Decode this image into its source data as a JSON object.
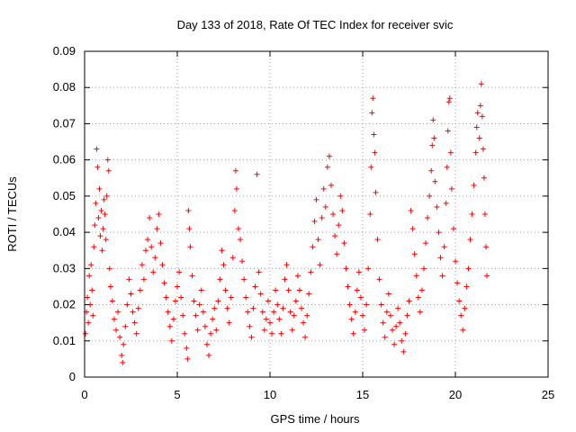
{
  "chart_data": {
    "type": "scatter",
    "title": "Day 133 of 2018, Rate Of TEC Index for receiver svic",
    "xlabel": "GPS time / hours",
    "ylabel": "ROTI / TECUs",
    "xlim": [
      0,
      25
    ],
    "ylim": [
      0,
      0.09
    ],
    "x_ticks": [
      "0",
      "5",
      "10",
      "15",
      "20",
      "25"
    ],
    "y_ticks": [
      "0",
      "0.01",
      "0.02",
      "0.03",
      "0.04",
      "0.05",
      "0.06",
      "0.07",
      "0.08",
      "0.09"
    ],
    "grid": true,
    "marker": "+",
    "color": "#ff0000",
    "points": [
      [
        0.05,
        0.012
      ],
      [
        0.1,
        0.018
      ],
      [
        0.15,
        0.022
      ],
      [
        0.2,
        0.015
      ],
      [
        0.25,
        0.028
      ],
      [
        0.3,
        0.02
      ],
      [
        0.35,
        0.031
      ],
      [
        0.4,
        0.024
      ],
      [
        0.45,
        0.017
      ],
      [
        0.5,
        0.036
      ],
      [
        0.55,
        0.042
      ],
      [
        0.6,
        0.048
      ],
      [
        0.65,
        0.063
      ],
      [
        0.7,
        0.058
      ],
      [
        0.75,
        0.044
      ],
      [
        0.8,
        0.052
      ],
      [
        0.85,
        0.039
      ],
      [
        0.9,
        0.046
      ],
      [
        0.95,
        0.035
      ],
      [
        1.0,
        0.041
      ],
      [
        1.05,
        0.049
      ],
      [
        1.1,
        0.045
      ],
      [
        1.15,
        0.038
      ],
      [
        1.2,
        0.05
      ],
      [
        1.25,
        0.06
      ],
      [
        1.3,
        0.057
      ],
      [
        1.35,
        0.03
      ],
      [
        1.4,
        0.025
      ],
      [
        1.5,
        0.021
      ],
      [
        1.6,
        0.016
      ],
      [
        1.7,
        0.013
      ],
      [
        1.8,
        0.018
      ],
      [
        1.9,
        0.011
      ],
      [
        2.0,
        0.006
      ],
      [
        2.05,
        0.004
      ],
      [
        2.1,
        0.009
      ],
      [
        2.2,
        0.014
      ],
      [
        2.3,
        0.02
      ],
      [
        2.4,
        0.027
      ],
      [
        2.5,
        0.023
      ],
      [
        2.6,
        0.018
      ],
      [
        2.7,
        0.015
      ],
      [
        2.8,
        0.012
      ],
      [
        2.9,
        0.019
      ],
      [
        3.0,
        0.024
      ],
      [
        3.1,
        0.031
      ],
      [
        3.2,
        0.027
      ],
      [
        3.3,
        0.035
      ],
      [
        3.4,
        0.038
      ],
      [
        3.5,
        0.044
      ],
      [
        3.6,
        0.036
      ],
      [
        3.7,
        0.029
      ],
      [
        3.8,
        0.033
      ],
      [
        3.9,
        0.041
      ],
      [
        4.0,
        0.045
      ],
      [
        4.1,
        0.037
      ],
      [
        4.2,
        0.031
      ],
      [
        4.3,
        0.026
      ],
      [
        4.4,
        0.022
      ],
      [
        4.5,
        0.018
      ],
      [
        4.6,
        0.014
      ],
      [
        4.7,
        0.01
      ],
      [
        4.8,
        0.016
      ],
      [
        4.9,
        0.021
      ],
      [
        5.0,
        0.025
      ],
      [
        5.1,
        0.029
      ],
      [
        5.2,
        0.022
      ],
      [
        5.3,
        0.017
      ],
      [
        5.4,
        0.012
      ],
      [
        5.5,
        0.008
      ],
      [
        5.55,
        0.005
      ],
      [
        5.6,
        0.046
      ],
      [
        5.65,
        0.041
      ],
      [
        5.7,
        0.036
      ],
      [
        5.8,
        0.028
      ],
      [
        5.9,
        0.021
      ],
      [
        6.0,
        0.017
      ],
      [
        6.1,
        0.013
      ],
      [
        6.2,
        0.02
      ],
      [
        6.3,
        0.024
      ],
      [
        6.4,
        0.018
      ],
      [
        6.5,
        0.014
      ],
      [
        6.6,
        0.009
      ],
      [
        6.7,
        0.006
      ],
      [
        6.8,
        0.012
      ],
      [
        6.9,
        0.016
      ],
      [
        7.0,
        0.019
      ],
      [
        7.1,
        0.013
      ],
      [
        7.2,
        0.021
      ],
      [
        7.3,
        0.027
      ],
      [
        7.4,
        0.035
      ],
      [
        7.5,
        0.031
      ],
      [
        7.6,
        0.024
      ],
      [
        7.7,
        0.019
      ],
      [
        7.8,
        0.015
      ],
      [
        7.9,
        0.022
      ],
      [
        8.0,
        0.033
      ],
      [
        8.1,
        0.046
      ],
      [
        8.15,
        0.057
      ],
      [
        8.2,
        0.052
      ],
      [
        8.3,
        0.041
      ],
      [
        8.4,
        0.038
      ],
      [
        8.5,
        0.032
      ],
      [
        8.6,
        0.027
      ],
      [
        8.7,
        0.022
      ],
      [
        8.8,
        0.018
      ],
      [
        8.9,
        0.014
      ],
      [
        9.0,
        0.011
      ],
      [
        9.1,
        0.019
      ],
      [
        9.2,
        0.025
      ],
      [
        9.3,
        0.056
      ],
      [
        9.4,
        0.029
      ],
      [
        9.5,
        0.023
      ],
      [
        9.6,
        0.018
      ],
      [
        9.7,
        0.013
      ],
      [
        9.8,
        0.016
      ],
      [
        9.9,
        0.021
      ],
      [
        10.0,
        0.015
      ],
      [
        10.1,
        0.012
      ],
      [
        10.2,
        0.018
      ],
      [
        10.3,
        0.024
      ],
      [
        10.4,
        0.02
      ],
      [
        10.5,
        0.016
      ],
      [
        10.6,
        0.012
      ],
      [
        10.7,
        0.019
      ],
      [
        10.8,
        0.027
      ],
      [
        10.9,
        0.031
      ],
      [
        11.0,
        0.024
      ],
      [
        11.1,
        0.018
      ],
      [
        11.2,
        0.013
      ],
      [
        11.3,
        0.017
      ],
      [
        11.4,
        0.021
      ],
      [
        11.5,
        0.028
      ],
      [
        11.6,
        0.024
      ],
      [
        11.7,
        0.019
      ],
      [
        11.8,
        0.015
      ],
      [
        11.9,
        0.011
      ],
      [
        12.0,
        0.017
      ],
      [
        12.1,
        0.023
      ],
      [
        12.2,
        0.029
      ],
      [
        12.3,
        0.036
      ],
      [
        12.4,
        0.043
      ],
      [
        12.5,
        0.049
      ],
      [
        12.6,
        0.038
      ],
      [
        12.7,
        0.031
      ],
      [
        12.8,
        0.044
      ],
      [
        12.9,
        0.052
      ],
      [
        13.0,
        0.047
      ],
      [
        13.1,
        0.058
      ],
      [
        13.2,
        0.061
      ],
      [
        13.3,
        0.053
      ],
      [
        13.4,
        0.045
      ],
      [
        13.5,
        0.039
      ],
      [
        13.6,
        0.034
      ],
      [
        13.7,
        0.042
      ],
      [
        13.8,
        0.05
      ],
      [
        13.9,
        0.046
      ],
      [
        14.0,
        0.037
      ],
      [
        14.1,
        0.03
      ],
      [
        14.2,
        0.025
      ],
      [
        14.3,
        0.02
      ],
      [
        14.4,
        0.016
      ],
      [
        14.5,
        0.012
      ],
      [
        14.6,
        0.018
      ],
      [
        14.7,
        0.024
      ],
      [
        14.8,
        0.029
      ],
      [
        14.9,
        0.022
      ],
      [
        15.0,
        0.017
      ],
      [
        15.1,
        0.013
      ],
      [
        15.2,
        0.02
      ],
      [
        15.3,
        0.03
      ],
      [
        15.4,
        0.045
      ],
      [
        15.45,
        0.058
      ],
      [
        15.5,
        0.073
      ],
      [
        15.55,
        0.077
      ],
      [
        15.6,
        0.067
      ],
      [
        15.65,
        0.062
      ],
      [
        15.7,
        0.051
      ],
      [
        15.8,
        0.038
      ],
      [
        15.9,
        0.027
      ],
      [
        16.0,
        0.02
      ],
      [
        16.1,
        0.015
      ],
      [
        16.2,
        0.011
      ],
      [
        16.3,
        0.018
      ],
      [
        16.4,
        0.023
      ],
      [
        16.5,
        0.017
      ],
      [
        16.6,
        0.013
      ],
      [
        16.7,
        0.009
      ],
      [
        16.8,
        0.014
      ],
      [
        16.9,
        0.019
      ],
      [
        17.0,
        0.015
      ],
      [
        17.1,
        0.01
      ],
      [
        17.2,
        0.007
      ],
      [
        17.3,
        0.012
      ],
      [
        17.4,
        0.017
      ],
      [
        17.5,
        0.021
      ],
      [
        17.6,
        0.046
      ],
      [
        17.7,
        0.041
      ],
      [
        17.8,
        0.034
      ],
      [
        17.9,
        0.028
      ],
      [
        18.0,
        0.022
      ],
      [
        18.1,
        0.018
      ],
      [
        18.2,
        0.024
      ],
      [
        18.3,
        0.03
      ],
      [
        18.4,
        0.037
      ],
      [
        18.5,
        0.044
      ],
      [
        18.6,
        0.05
      ],
      [
        18.7,
        0.057
      ],
      [
        18.75,
        0.064
      ],
      [
        18.8,
        0.071
      ],
      [
        18.85,
        0.066
      ],
      [
        18.9,
        0.054
      ],
      [
        19.0,
        0.047
      ],
      [
        19.1,
        0.04
      ],
      [
        19.2,
        0.033
      ],
      [
        19.3,
        0.028
      ],
      [
        19.4,
        0.036
      ],
      [
        19.5,
        0.048
      ],
      [
        19.55,
        0.058
      ],
      [
        19.6,
        0.068
      ],
      [
        19.65,
        0.076
      ],
      [
        19.7,
        0.077
      ],
      [
        19.75,
        0.062
      ],
      [
        19.8,
        0.052
      ],
      [
        19.9,
        0.041
      ],
      [
        20.0,
        0.032
      ],
      [
        20.1,
        0.026
      ],
      [
        20.2,
        0.021
      ],
      [
        20.3,
        0.017
      ],
      [
        20.4,
        0.013
      ],
      [
        20.5,
        0.019
      ],
      [
        20.6,
        0.025
      ],
      [
        20.7,
        0.03
      ],
      [
        20.8,
        0.038
      ],
      [
        20.9,
        0.045
      ],
      [
        21.0,
        0.053
      ],
      [
        21.1,
        0.062
      ],
      [
        21.15,
        0.069
      ],
      [
        21.2,
        0.073
      ],
      [
        21.3,
        0.066
      ],
      [
        21.35,
        0.075
      ],
      [
        21.4,
        0.081
      ],
      [
        21.45,
        0.072
      ],
      [
        21.5,
        0.063
      ],
      [
        21.55,
        0.055
      ],
      [
        21.6,
        0.045
      ],
      [
        21.65,
        0.036
      ],
      [
        21.7,
        0.028
      ]
    ]
  }
}
